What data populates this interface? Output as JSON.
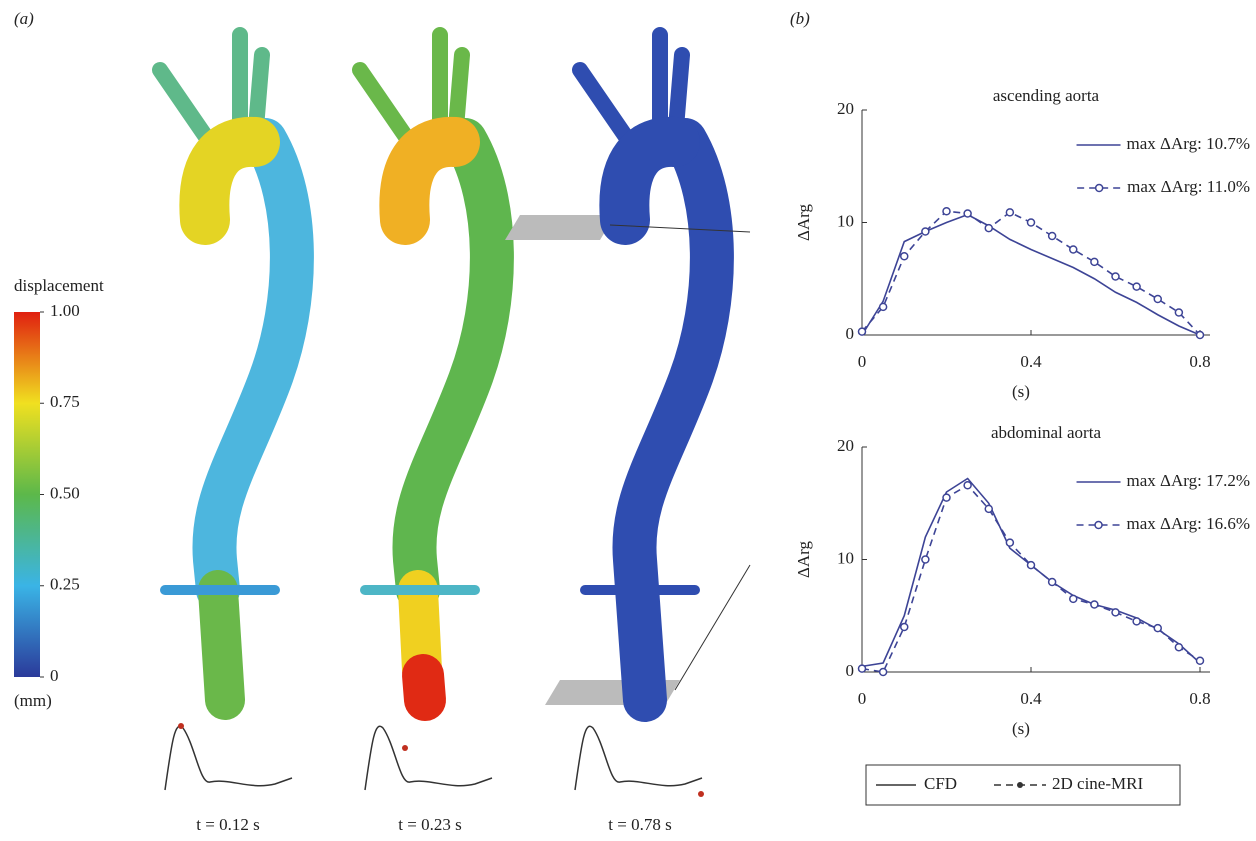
{
  "panel_a": {
    "label": "(a)",
    "colorbar": {
      "title": "displacement",
      "unit": "(mm)",
      "ticks": [
        {
          "value": 1,
          "label": "1.00"
        },
        {
          "value": 0.75,
          "label": "0.75"
        },
        {
          "value": 0.5,
          "label": "0.50"
        },
        {
          "value": 0.25,
          "label": "0.25"
        },
        0
      ]
    },
    "time_labels": [
      "t = 0.12 s",
      "t = 0.23 s",
      "t = 0.78 s"
    ]
  },
  "panel_b": {
    "label": "(b)",
    "legend": [
      "CFD",
      "2D cine-MRI"
    ]
  },
  "chart_data": [
    {
      "type": "line",
      "title": "ascending aorta",
      "xlabel": "(s)",
      "ylabel": "ΔArg",
      "x": [
        0,
        0.05,
        0.1,
        0.15,
        0.2,
        0.25,
        0.3,
        0.35,
        0.4,
        0.45,
        0.5,
        0.55,
        0.6,
        0.65,
        0.7,
        0.75,
        0.8
      ],
      "series": [
        {
          "name": "max ΔArg: 10.7%",
          "color": "#3d4496",
          "linestyle": "solid",
          "marker": false,
          "values": [
            0,
            3,
            8.3,
            9.2,
            10,
            10.7,
            9.7,
            8.5,
            7.6,
            6.8,
            6,
            5,
            3.8,
            2.9,
            1.8,
            0.8,
            0
          ]
        },
        {
          "name": "max ΔArg: 11.0%",
          "color": "#3d4496",
          "linestyle": "dashed",
          "marker": true,
          "values": [
            0.3,
            2.5,
            7,
            9.2,
            11.0,
            10.8,
            9.5,
            10.9,
            10,
            8.8,
            7.6,
            6.5,
            5.2,
            4.3,
            3.2,
            2,
            0
          ]
        }
      ],
      "xlim": [
        0,
        0.8
      ],
      "xticks": [
        0,
        0.4,
        0.8
      ],
      "ylim": [
        0,
        20
      ],
      "yticks": [
        0,
        10,
        20
      ],
      "legend": "upper right"
    },
    {
      "type": "line",
      "title": "abdominal aorta",
      "xlabel": "(s)",
      "ylabel": "ΔArg",
      "x": [
        0,
        0.05,
        0.1,
        0.15,
        0.2,
        0.25,
        0.3,
        0.35,
        0.4,
        0.45,
        0.5,
        0.55,
        0.6,
        0.65,
        0.7,
        0.75,
        0.8
      ],
      "series": [
        {
          "name": "max ΔArg: 17.2%",
          "color": "#3d4496",
          "linestyle": "solid",
          "marker": false,
          "values": [
            0.5,
            0.8,
            5,
            12,
            16,
            17.2,
            15,
            11,
            9.5,
            8,
            6.8,
            6,
            5.5,
            4.8,
            3.8,
            2.5,
            0.8
          ]
        },
        {
          "name": "max ΔArg: 16.6%",
          "color": "#3d4496",
          "linestyle": "dashed",
          "marker": true,
          "values": [
            0.3,
            0,
            4,
            10,
            15.5,
            16.6,
            14.5,
            11.5,
            9.5,
            8,
            6.5,
            6,
            5.3,
            4.5,
            3.9,
            2.2,
            1
          ]
        }
      ],
      "xlim": [
        0,
        0.8
      ],
      "xticks": [
        0,
        0.4,
        0.8
      ],
      "ylim": [
        0,
        20
      ],
      "yticks": [
        0,
        10,
        20
      ],
      "legend": "upper right"
    }
  ]
}
